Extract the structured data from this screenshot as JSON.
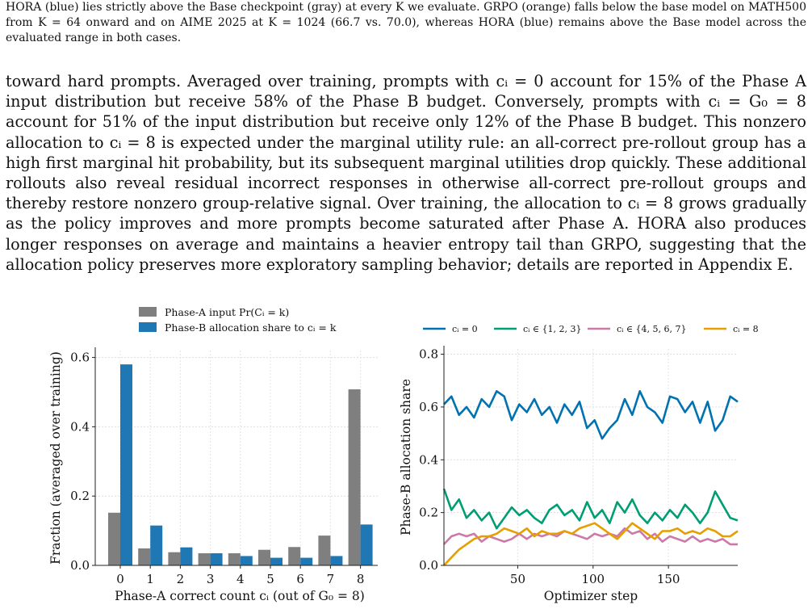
{
  "caption_tail": "HORA (blue) lies strictly above the Base checkpoint (gray) at every K we evaluate. GRPO (orange) falls below the base model on MATH500 from K = 64 onward and on AIME 2025 at K = 1024 (66.7 vs. 70.0), whereas HORA (blue) remains above the Base model across the evaluated range in both cases.",
  "body_text": "toward hard prompts. Averaged over training, prompts with cᵢ = 0 account for 15% of the Phase A input distribution but receive 58% of the Phase B budget. Conversely, prompts with cᵢ = G₀ = 8 account for 51% of the input distribution but receive only 12% of the Phase B budget. This nonzero allocation to cᵢ = 8 is expected under the marginal utility rule: an all-correct pre-rollout group has a high first marginal hit probability, but its subsequent marginal utilities drop quickly. These additional rollouts also reveal residual incorrect responses in otherwise all-correct pre-rollout groups and thereby restore nonzero group-relative signal. Over training, the allocation to cᵢ = 8 grows gradually as the policy improves and more prompts become saturated after Phase A. HORA also produces longer responses on average and maintains a heavier entropy tail than GRPO, suggesting that the allocation policy preserves more exploratory sampling behavior; details are reported in Appendix E.",
  "colors": {
    "gray": "#7f7f7f",
    "blue": "#1f77b4",
    "c0": "#0072b2",
    "c123": "#009e73",
    "c4567": "#cc79a7",
    "c8": "#e69f00"
  },
  "chart_data": [
    {
      "type": "bar",
      "xlabel": "Phase-A correct count cᵢ (out of G₀ = 8)",
      "ylabel": "Fraction (averaged over training)",
      "categories": [
        "0",
        "1",
        "2",
        "3",
        "4",
        "5",
        "6",
        "7",
        "8"
      ],
      "ylim": [
        0,
        0.62
      ],
      "yticks": [
        "0.0",
        "0.2",
        "0.4",
        "0.6"
      ],
      "ytick_values": [
        0,
        0.2,
        0.4,
        0.6
      ],
      "legend": [
        "Phase-A input Pr(Cᵢ = k)",
        "Phase-B allocation share to cᵢ = k"
      ],
      "legend_placement": "top",
      "grid": true,
      "series": [
        {
          "name": "Phase-A input Pr(Cᵢ = k)",
          "values": [
            0.152,
            0.049,
            0.038,
            0.035,
            0.035,
            0.045,
            0.053,
            0.086,
            0.508
          ]
        },
        {
          "name": "Phase-B allocation share to cᵢ = k",
          "values": [
            0.58,
            0.115,
            0.052,
            0.035,
            0.027,
            0.022,
            0.022,
            0.027,
            0.118
          ]
        }
      ]
    },
    {
      "type": "line",
      "xlabel": "Optimizer step",
      "ylabel": "Phase-B allocation share",
      "xlim": [
        1,
        196
      ],
      "ylim": [
        0,
        0.82
      ],
      "xticks": [
        "50",
        "100",
        "150"
      ],
      "xtick_values": [
        50,
        100,
        150
      ],
      "yticks": [
        "0.0",
        "0.2",
        "0.4",
        "0.6",
        "0.8"
      ],
      "ytick_values": [
        0,
        0.2,
        0.4,
        0.6,
        0.8
      ],
      "legend_placement": "top",
      "grid": true,
      "series": [
        {
          "name": "cᵢ = 0",
          "x": [
            1,
            6,
            11,
            16,
            21,
            26,
            31,
            36,
            41,
            46,
            51,
            56,
            61,
            66,
            71,
            76,
            81,
            86,
            91,
            96,
            101,
            106,
            111,
            116,
            121,
            126,
            131,
            136,
            141,
            146,
            151,
            156,
            161,
            166,
            171,
            176,
            181,
            186,
            191,
            196
          ],
          "y": [
            0.61,
            0.64,
            0.57,
            0.6,
            0.56,
            0.63,
            0.6,
            0.66,
            0.64,
            0.55,
            0.61,
            0.58,
            0.63,
            0.57,
            0.6,
            0.54,
            0.61,
            0.57,
            0.62,
            0.52,
            0.55,
            0.48,
            0.52,
            0.55,
            0.63,
            0.57,
            0.66,
            0.6,
            0.58,
            0.54,
            0.64,
            0.63,
            0.58,
            0.62,
            0.54,
            0.62,
            0.51,
            0.55,
            0.64,
            0.62
          ]
        },
        {
          "name": "cᵢ ∈ {1, 2, 3}",
          "x": [
            1,
            6,
            11,
            16,
            21,
            26,
            31,
            36,
            41,
            46,
            51,
            56,
            61,
            66,
            71,
            76,
            81,
            86,
            91,
            96,
            101,
            106,
            111,
            116,
            121,
            126,
            131,
            136,
            141,
            146,
            151,
            156,
            161,
            166,
            171,
            176,
            181,
            186,
            191,
            196
          ],
          "y": [
            0.29,
            0.21,
            0.25,
            0.18,
            0.21,
            0.17,
            0.2,
            0.14,
            0.18,
            0.22,
            0.19,
            0.21,
            0.18,
            0.16,
            0.21,
            0.23,
            0.19,
            0.21,
            0.17,
            0.24,
            0.18,
            0.21,
            0.16,
            0.24,
            0.2,
            0.25,
            0.19,
            0.16,
            0.2,
            0.17,
            0.21,
            0.18,
            0.23,
            0.2,
            0.16,
            0.2,
            0.28,
            0.23,
            0.18,
            0.17
          ]
        },
        {
          "name": "cᵢ ∈ {4, 5, 6, 7}",
          "x": [
            1,
            6,
            11,
            16,
            21,
            26,
            31,
            36,
            41,
            46,
            51,
            56,
            61,
            66,
            71,
            76,
            81,
            86,
            91,
            96,
            101,
            106,
            111,
            116,
            121,
            126,
            131,
            136,
            141,
            146,
            151,
            156,
            161,
            166,
            171,
            176,
            181,
            186,
            191,
            196
          ],
          "y": [
            0.08,
            0.11,
            0.12,
            0.11,
            0.12,
            0.09,
            0.11,
            0.1,
            0.09,
            0.1,
            0.12,
            0.1,
            0.12,
            0.11,
            0.12,
            0.11,
            0.13,
            0.12,
            0.11,
            0.1,
            0.12,
            0.11,
            0.12,
            0.11,
            0.14,
            0.12,
            0.13,
            0.1,
            0.12,
            0.09,
            0.11,
            0.1,
            0.09,
            0.11,
            0.09,
            0.1,
            0.09,
            0.1,
            0.08,
            0.08
          ]
        },
        {
          "name": "cᵢ = 8",
          "x": [
            1,
            6,
            11,
            16,
            21,
            26,
            31,
            36,
            41,
            46,
            51,
            56,
            61,
            66,
            71,
            76,
            81,
            86,
            91,
            96,
            101,
            106,
            111,
            116,
            121,
            126,
            131,
            136,
            141,
            146,
            151,
            156,
            161,
            166,
            171,
            176,
            181,
            186,
            191,
            196
          ],
          "y": [
            0.0,
            0.03,
            0.06,
            0.08,
            0.1,
            0.11,
            0.11,
            0.12,
            0.14,
            0.13,
            0.12,
            0.14,
            0.11,
            0.13,
            0.12,
            0.12,
            0.13,
            0.12,
            0.14,
            0.15,
            0.16,
            0.14,
            0.12,
            0.1,
            0.13,
            0.16,
            0.14,
            0.12,
            0.1,
            0.13,
            0.13,
            0.14,
            0.12,
            0.13,
            0.12,
            0.14,
            0.13,
            0.11,
            0.11,
            0.13
          ]
        }
      ]
    }
  ]
}
